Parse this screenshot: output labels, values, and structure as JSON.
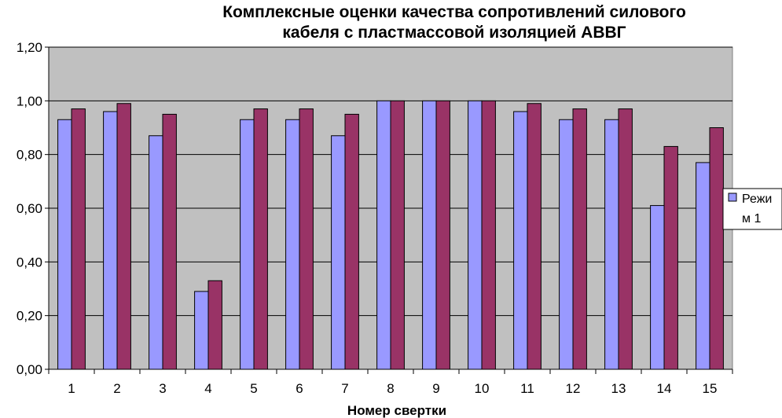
{
  "colors": {
    "plot_background": "#c0c0c0",
    "series_1": "#9999ff",
    "series_2": "#993366",
    "gridline": "#000000"
  },
  "chart_data": {
    "type": "bar",
    "title_lines": [
      "Комплексные оценки качества сопротивлений силового",
      "кабеля с пластмассовой изоляцией АВВГ"
    ],
    "xlabel": "Номер свертки",
    "ylabel": "",
    "ylim": [
      0,
      1.2
    ],
    "yticks": [
      "0,00",
      "0,20",
      "0,40",
      "0,60",
      "0,80",
      "1,00",
      "1,20"
    ],
    "grid": true,
    "legend_position": "right",
    "categories": [
      "1",
      "2",
      "3",
      "4",
      "5",
      "6",
      "7",
      "8",
      "9",
      "10",
      "11",
      "12",
      "13",
      "14",
      "15"
    ],
    "series": [
      {
        "name": "Режим 1",
        "legend_lines": [
          "Режи",
          "м 1"
        ],
        "color": "#9999ff",
        "values": [
          0.93,
          0.96,
          0.87,
          0.29,
          0.93,
          0.93,
          0.87,
          1.0,
          1.0,
          1.0,
          0.96,
          0.93,
          0.93,
          0.61,
          0.77
        ]
      },
      {
        "color": "#993366",
        "values": [
          0.97,
          0.99,
          0.95,
          0.33,
          0.97,
          0.97,
          0.95,
          1.0,
          1.0,
          1.0,
          0.99,
          0.97,
          0.97,
          0.83,
          0.9
        ]
      }
    ]
  }
}
